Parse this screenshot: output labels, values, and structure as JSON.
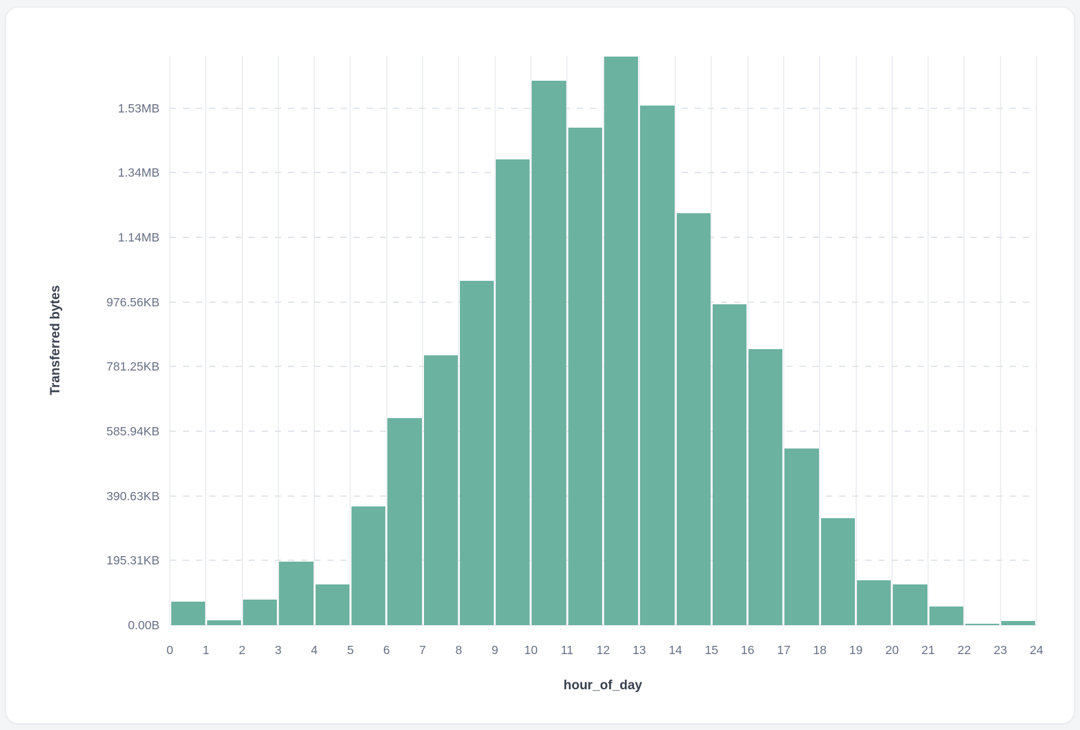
{
  "page": {
    "background_color": "#f4f5f7",
    "card_background_color": "#ffffff"
  },
  "chart_data": {
    "type": "bar",
    "title": "",
    "xlabel": "hour_of_day",
    "ylabel": "Transferred bytes",
    "bar_color": "#6cb2a0",
    "grid": "on",
    "legend": "none",
    "x_unit": "hour bins 0-23, axis ticks at every integer 0-24",
    "y_unit": "bytes",
    "ylim": [
      0,
      1762000
    ],
    "x": [
      0,
      1,
      2,
      3,
      4,
      5,
      6,
      7,
      8,
      9,
      10,
      11,
      12,
      13,
      14,
      15,
      16,
      17,
      18,
      19,
      20,
      21,
      22,
      23
    ],
    "values": [
      72500,
      15600,
      79000,
      195800,
      126500,
      368400,
      640000,
      834800,
      1065200,
      1440700,
      1686000,
      1540300,
      1760000,
      1608000,
      1275100,
      994100,
      853300,
      546100,
      331400,
      138700,
      126500,
      57600,
      4300,
      12800
    ],
    "x_ticks": [
      "0",
      "1",
      "2",
      "3",
      "4",
      "5",
      "6",
      "7",
      "8",
      "9",
      "10",
      "11",
      "12",
      "13",
      "14",
      "15",
      "16",
      "17",
      "18",
      "19",
      "20",
      "21",
      "22",
      "23",
      "24"
    ],
    "y_ticks": [
      {
        "label": "0.00B",
        "value": 0
      },
      {
        "label": "195.31KB",
        "value": 200000
      },
      {
        "label": "390.63KB",
        "value": 400000
      },
      {
        "label": "585.94KB",
        "value": 600000
      },
      {
        "label": "781.25KB",
        "value": 800000
      },
      {
        "label": "976.56KB",
        "value": 1000000
      },
      {
        "label": "1.14MB",
        "value": 1200000
      },
      {
        "label": "1.34MB",
        "value": 1400000
      },
      {
        "label": "1.53MB",
        "value": 1600000
      }
    ]
  }
}
